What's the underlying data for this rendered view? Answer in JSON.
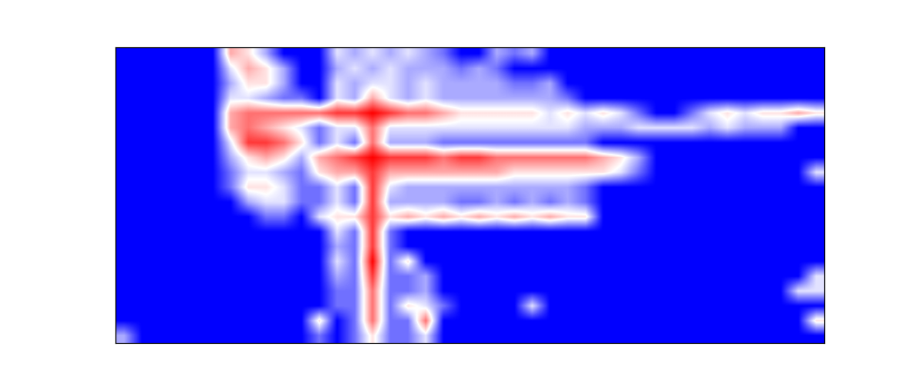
{
  "chart_data": {
    "type": "heatmap",
    "tick_labels": false,
    "cells": [
      [
        0,
        0,
        0,
        0,
        0,
        0,
        6,
        5,
        3,
        0,
        0,
        0,
        4,
        3,
        4,
        3,
        4,
        3,
        2,
        0,
        0,
        3,
        2,
        3,
        0,
        0,
        0,
        0,
        0,
        0,
        0,
        0,
        0,
        0,
        0,
        0,
        0,
        0,
        0,
        0
      ],
      [
        0,
        0,
        0,
        0,
        0,
        0,
        4,
        6,
        5,
        3,
        0,
        0,
        3,
        4,
        3,
        4,
        3,
        3,
        3,
        2,
        3,
        2,
        0,
        0,
        0,
        0,
        0,
        0,
        0,
        0,
        0,
        0,
        0,
        0,
        0,
        0,
        0,
        0,
        0,
        0
      ],
      [
        0,
        0,
        0,
        0,
        0,
        0,
        3,
        5,
        5,
        3,
        0,
        0,
        4,
        3,
        4,
        4,
        3,
        4,
        3,
        3,
        3,
        3,
        2,
        2,
        3,
        0,
        0,
        0,
        0,
        0,
        0,
        0,
        0,
        0,
        0,
        0,
        0,
        0,
        0,
        0
      ],
      [
        0,
        0,
        0,
        0,
        0,
        0,
        4,
        4,
        3,
        2,
        2,
        0,
        4,
        3,
        6,
        4,
        3,
        4,
        3,
        3,
        3,
        3,
        3,
        3,
        3,
        2,
        0,
        0,
        0,
        0,
        0,
        0,
        0,
        0,
        0,
        0,
        0,
        0,
        0,
        0
      ],
      [
        0,
        0,
        0,
        0,
        0,
        0,
        6,
        7,
        7,
        7,
        7,
        7,
        8,
        8,
        9,
        8,
        7,
        7,
        6,
        5,
        5,
        5,
        5,
        5,
        4,
        5,
        4,
        5,
        4,
        2,
        0,
        0,
        2,
        4,
        5,
        4,
        5,
        5,
        6,
        5
      ],
      [
        0,
        0,
        0,
        0,
        0,
        0,
        6,
        7,
        6,
        5,
        4,
        2,
        4,
        4,
        7,
        4,
        4,
        4,
        4,
        4,
        4,
        4,
        4,
        4,
        4,
        4,
        3,
        3,
        3,
        4,
        4,
        4,
        4,
        3,
        4,
        3,
        3,
        3,
        0,
        0
      ],
      [
        0,
        0,
        0,
        0,
        0,
        0,
        4,
        8,
        8,
        7,
        5,
        2,
        4,
        2,
        7,
        3,
        3,
        3,
        2,
        2,
        2,
        2,
        2,
        2,
        2,
        2,
        2,
        0,
        0,
        0,
        0,
        0,
        0,
        0,
        0,
        0,
        0,
        0,
        0,
        0
      ],
      [
        0,
        0,
        0,
        0,
        0,
        0,
        3,
        5,
        6,
        5,
        3,
        6,
        7,
        8,
        9,
        8,
        8,
        8,
        7,
        8,
        8,
        7,
        7,
        7,
        7,
        7,
        7,
        6,
        5,
        3,
        0,
        0,
        0,
        0,
        0,
        0,
        0,
        0,
        0,
        0
      ],
      [
        0,
        0,
        0,
        0,
        0,
        0,
        2,
        4,
        4,
        3,
        2,
        5,
        6,
        6,
        8,
        6,
        6,
        6,
        6,
        6,
        6,
        6,
        5,
        5,
        5,
        5,
        5,
        5,
        4,
        2,
        0,
        0,
        0,
        0,
        0,
        0,
        0,
        0,
        0,
        4
      ],
      [
        0,
        0,
        0,
        0,
        0,
        0,
        2,
        5,
        5,
        4,
        2,
        2,
        4,
        2,
        8,
        4,
        3,
        3,
        3,
        3,
        3,
        3,
        3,
        3,
        3,
        3,
        2,
        0,
        0,
        0,
        0,
        0,
        0,
        0,
        0,
        0,
        0,
        0,
        0,
        0
      ],
      [
        0,
        0,
        0,
        0,
        0,
        0,
        0,
        3,
        4,
        4,
        2,
        2,
        4,
        2,
        8,
        3,
        3,
        3,
        3,
        2,
        2,
        3,
        2,
        3,
        2,
        3,
        2,
        0,
        0,
        0,
        0,
        0,
        0,
        0,
        0,
        0,
        0,
        0,
        0,
        0
      ],
      [
        0,
        0,
        0,
        0,
        0,
        0,
        0,
        0,
        2,
        2,
        0,
        4,
        5,
        5,
        8,
        5,
        6,
        5,
        6,
        5,
        6,
        5,
        6,
        5,
        6,
        5,
        5,
        0,
        0,
        0,
        0,
        0,
        0,
        0,
        0,
        0,
        0,
        0,
        0,
        0
      ],
      [
        0,
        0,
        0,
        0,
        0,
        0,
        0,
        0,
        0,
        0,
        0,
        0,
        4,
        2,
        8,
        2,
        0,
        0,
        0,
        0,
        0,
        0,
        0,
        0,
        0,
        0,
        0,
        0,
        0,
        0,
        0,
        0,
        0,
        0,
        0,
        0,
        0,
        0,
        0,
        0
      ],
      [
        0,
        0,
        0,
        0,
        0,
        0,
        0,
        0,
        0,
        0,
        0,
        0,
        3,
        2,
        8,
        2,
        0,
        0,
        0,
        0,
        0,
        0,
        0,
        0,
        0,
        0,
        0,
        0,
        0,
        0,
        0,
        0,
        0,
        0,
        0,
        0,
        0,
        0,
        0,
        0
      ],
      [
        0,
        0,
        0,
        0,
        0,
        0,
        0,
        0,
        0,
        0,
        0,
        0,
        4,
        2,
        9,
        2,
        5,
        0,
        0,
        0,
        0,
        0,
        0,
        0,
        0,
        0,
        0,
        0,
        0,
        0,
        0,
        0,
        0,
        0,
        0,
        0,
        0,
        0,
        0,
        0
      ],
      [
        0,
        0,
        0,
        0,
        0,
        0,
        0,
        0,
        0,
        0,
        0,
        0,
        3,
        2,
        8,
        2,
        2,
        3,
        0,
        0,
        0,
        0,
        0,
        0,
        0,
        0,
        0,
        0,
        0,
        0,
        0,
        0,
        0,
        0,
        0,
        0,
        0,
        0,
        0,
        4
      ],
      [
        0,
        0,
        0,
        0,
        0,
        0,
        0,
        0,
        0,
        0,
        0,
        0,
        2,
        2,
        7,
        2,
        2,
        3,
        0,
        0,
        0,
        0,
        0,
        0,
        0,
        0,
        0,
        0,
        0,
        0,
        0,
        0,
        0,
        0,
        0,
        0,
        0,
        0,
        4,
        4
      ],
      [
        0,
        0,
        0,
        0,
        0,
        0,
        0,
        0,
        0,
        0,
        0,
        0,
        2,
        2,
        7,
        2,
        5,
        4,
        2,
        0,
        0,
        0,
        0,
        4,
        0,
        0,
        0,
        0,
        0,
        0,
        0,
        0,
        0,
        0,
        0,
        0,
        0,
        0,
        0,
        0
      ],
      [
        0,
        0,
        0,
        0,
        0,
        0,
        0,
        0,
        0,
        0,
        0,
        5,
        0,
        2,
        7,
        2,
        2,
        7,
        0,
        0,
        0,
        0,
        0,
        0,
        0,
        0,
        0,
        0,
        0,
        0,
        0,
        0,
        0,
        0,
        0,
        0,
        0,
        0,
        0,
        5
      ],
      [
        3,
        0,
        0,
        0,
        0,
        0,
        0,
        0,
        0,
        0,
        0,
        2,
        0,
        2,
        5,
        2,
        2,
        4,
        0,
        0,
        0,
        0,
        0,
        0,
        0,
        0,
        0,
        0,
        0,
        0,
        0,
        0,
        0,
        0,
        0,
        0,
        0,
        0,
        0,
        0
      ]
    ]
  }
}
